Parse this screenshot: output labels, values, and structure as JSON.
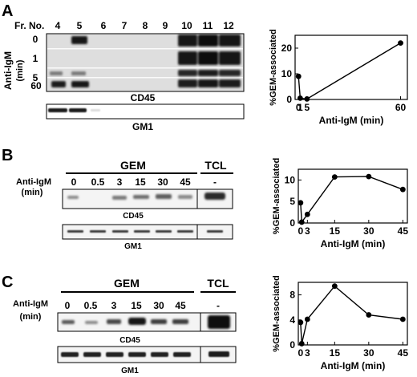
{
  "panels": [
    {
      "letter": "A",
      "fraction_label": "Fr. No.",
      "fractions": [
        "4",
        "5",
        "6",
        "7",
        "8",
        "9",
        "10",
        "11",
        "12"
      ],
      "row_axis_label": "Anti-IgM",
      "row_axis_unit": "(min)",
      "time_rows": [
        "0",
        "1",
        "5",
        "60"
      ],
      "blots": [
        "CD45",
        "GM1"
      ]
    },
    {
      "letter": "B",
      "gem_label": "GEM",
      "tcl_label": "TCL",
      "tcl_value": "-",
      "row_axis_label": "Anti-IgM",
      "row_axis_unit": "(min)",
      "times": [
        "0",
        "0.5",
        "3",
        "15",
        "30",
        "45"
      ],
      "blots": [
        "CD45",
        "GM1"
      ]
    },
    {
      "letter": "C",
      "gem_label": "GEM",
      "tcl_label": "TCL",
      "tcl_value": "-",
      "row_axis_label": "Anti-IgM",
      "row_axis_unit": "(min)",
      "times": [
        "0",
        "0.5",
        "3",
        "15",
        "30",
        "45"
      ],
      "blots": [
        "CD45",
        "GM1"
      ]
    }
  ],
  "chart_data": [
    {
      "type": "line",
      "panel": "A",
      "xlabel": "Anti-IgM (min)",
      "ylabel": "%GEM-associated",
      "x": [
        0,
        1,
        5,
        60
      ],
      "y": [
        9,
        0.5,
        0.2,
        22
      ],
      "xticks": [
        0,
        1,
        5,
        60
      ],
      "xtick_labels": [
        "0",
        "1",
        "5",
        "60"
      ],
      "yticks": [
        0,
        10,
        20
      ],
      "xlim": [
        -2,
        64
      ],
      "ylim": [
        0,
        25
      ],
      "grid": false
    },
    {
      "type": "line",
      "panel": "B",
      "xlabel": "Anti-IgM (min)",
      "ylabel": "%GEM-associated",
      "x": [
        0,
        0.5,
        3,
        15,
        30,
        45
      ],
      "y": [
        4.7,
        0.2,
        2,
        10.7,
        10.8,
        7.8
      ],
      "xticks": [
        0,
        3,
        15,
        30,
        45
      ],
      "xtick_labels": [
        "0",
        "3",
        "15",
        "30",
        "45"
      ],
      "yticks": [
        0,
        5,
        10
      ],
      "xlim": [
        -1,
        47
      ],
      "ylim": [
        0,
        12.5
      ],
      "grid": false
    },
    {
      "type": "line",
      "panel": "C",
      "xlabel": "Anti-IgM (min)",
      "ylabel": "%GEM-associated",
      "x": [
        0,
        0.5,
        3,
        15,
        30,
        45
      ],
      "y": [
        3.6,
        0.2,
        4.1,
        9.4,
        4.8,
        4.1
      ],
      "xticks": [
        0,
        3,
        15,
        30,
        45
      ],
      "xtick_labels": [
        "0",
        "3",
        "15",
        "30",
        "45"
      ],
      "yticks": [
        0,
        4,
        8
      ],
      "xlim": [
        -1,
        47
      ],
      "ylim": [
        0,
        10
      ],
      "grid": false
    }
  ]
}
